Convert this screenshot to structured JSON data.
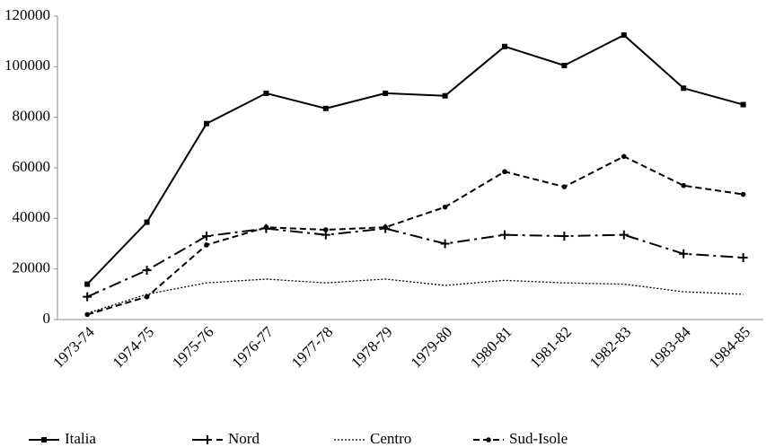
{
  "chart_data": {
    "type": "line",
    "categories": [
      "1973-74",
      "1974-75",
      "1975-76",
      "1976-77",
      "1977-78",
      "1978-79",
      "1979-80",
      "1980-81",
      "1981-82",
      "1982-83",
      "1983-84",
      "1984-85"
    ],
    "series": [
      {
        "name": "Italia",
        "color": "#000000",
        "line_style": "solid",
        "marker": "square",
        "values": [
          14000,
          38500,
          77500,
          89500,
          83500,
          89500,
          88500,
          108000,
          100500,
          112500,
          91500,
          85000
        ]
      },
      {
        "name": "Nord",
        "color": "#000000",
        "line_style": "dashdot",
        "marker": "plus",
        "values": [
          9000,
          19500,
          33000,
          36000,
          33500,
          36000,
          30000,
          33500,
          33000,
          33500,
          26000,
          24500
        ]
      },
      {
        "name": "Centro",
        "color": "#000000",
        "line_style": "dotted",
        "marker": "none",
        "values": [
          2500,
          10000,
          14500,
          16000,
          14500,
          16000,
          13500,
          15500,
          14500,
          14000,
          11000,
          10000
        ]
      },
      {
        "name": "Sud-Isole",
        "color": "#000000",
        "line_style": "dashed",
        "marker": "circle",
        "values": [
          2000,
          9000,
          29500,
          36500,
          35500,
          36500,
          44500,
          58500,
          52500,
          64500,
          53000,
          49500
        ]
      }
    ],
    "ylim": [
      0,
      120000
    ],
    "yticks": [
      0,
      20000,
      40000,
      60000,
      80000,
      100000,
      120000
    ],
    "grid": false,
    "legend": "bottom"
  }
}
